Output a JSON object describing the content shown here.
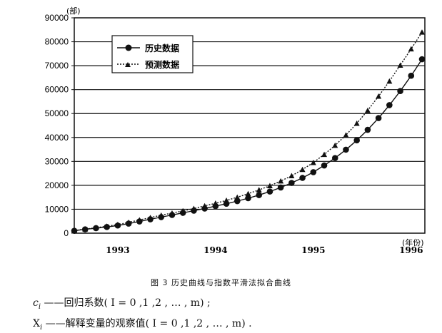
{
  "chart_data": {
    "type": "line",
    "x_ticks": [
      "1993",
      "1994",
      "1995",
      "1996"
    ],
    "x_unit": "(年份)",
    "y_ticks": [
      "0",
      "10000",
      "20000",
      "30000",
      "40000",
      "50000",
      "60000",
      "70000",
      "80000",
      "90000"
    ],
    "y_unit": "(部)",
    "ylim": [
      0,
      90000
    ],
    "grid": "horizontal",
    "legend_position": "top-left",
    "series": [
      {
        "name": "历史数据",
        "marker": "circle",
        "line": "solid",
        "color": "#111111",
        "values": [
          1000,
          1600,
          2100,
          2600,
          3200,
          4000,
          4900,
          5800,
          6700,
          7600,
          8500,
          9400,
          10300,
          11300,
          12300,
          13400,
          14600,
          15900,
          17400,
          19100,
          21000,
          23100,
          25500,
          28300,
          31400,
          34900,
          38800,
          43200,
          48100,
          53500,
          59400,
          65800,
          72700
        ]
      },
      {
        "name": "预测数据",
        "marker": "triangle",
        "line": "dotted",
        "color": "#111111",
        "values": [
          1100,
          1700,
          2300,
          2900,
          3600,
          4500,
          5500,
          6500,
          7500,
          8400,
          9300,
          10300,
          11400,
          12500,
          13700,
          15000,
          16500,
          18100,
          19800,
          21800,
          24000,
          26600,
          29500,
          32900,
          36700,
          41000,
          45900,
          51300,
          57200,
          63500,
          70200,
          77000,
          84000
        ]
      }
    ],
    "x_tick_positions": [
      4,
      13,
      22,
      31
    ]
  },
  "caption": "图 3   历史曲线与指数平滑法拟合曲线",
  "notes": {
    "c_symbol": "c",
    "c_sub": "i",
    "c_text": " ——回归系数( I = 0 ,1 ,2 , … , m) ;",
    "x_symbol": "X",
    "x_sub": "i",
    "x_text": " ——解释变量的观察值( I = 0 ,1 ,2 , … , m) ."
  }
}
